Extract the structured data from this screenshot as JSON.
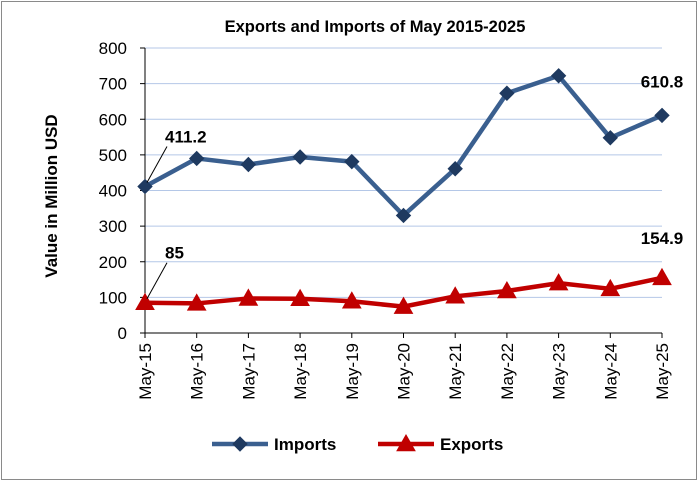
{
  "chart_data": {
    "type": "line",
    "title": "Exports and Imports of May 2015-2025",
    "xlabel": "",
    "ylabel": "Value in Million USD",
    "ylim": [
      0,
      800
    ],
    "yticks": [
      "0",
      "100",
      "200",
      "300",
      "400",
      "500",
      "600",
      "700",
      "800"
    ],
    "grid": true,
    "legend": "bottom",
    "categories": [
      "May-15",
      "May-16",
      "May-17",
      "May-18",
      "May-19",
      "May-20",
      "May-21",
      "May-22",
      "May-23",
      "May-24",
      "May-25"
    ],
    "series": [
      {
        "name": "Imports",
        "color": "#3a5f8f",
        "marker": "diamond",
        "values": [
          411.2,
          490,
          473,
          494,
          481,
          330,
          461,
          673,
          722,
          548,
          610.8
        ],
        "labels": [
          {
            "index": 0,
            "text": "411.2"
          },
          {
            "index": 10,
            "text": "610.8"
          }
        ]
      },
      {
        "name": "Exports",
        "color": "#c00000",
        "marker": "triangle",
        "values": [
          85,
          83,
          97,
          96,
          89,
          74,
          103,
          118,
          140,
          124,
          154.9
        ],
        "labels": [
          {
            "index": 0,
            "text": "85"
          },
          {
            "index": 10,
            "text": "154.9"
          }
        ]
      }
    ]
  }
}
